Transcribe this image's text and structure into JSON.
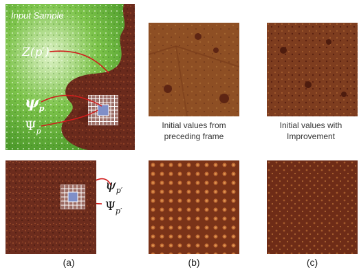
{
  "panel_a": {
    "title": "Input Sample",
    "label_z": "Z(p′)",
    "label_psi_p": "ψ",
    "label_Psi_p": "Ψ",
    "sub_p": "p",
    "label_psi_pprime": "ψ",
    "label_Psi_pprime": "Ψ",
    "sub_pprime": "p′",
    "caption": "(a)"
  },
  "panel_b": {
    "top_caption_line1": "Initial values from",
    "top_caption_line2": "preceding frame",
    "caption": "(b)"
  },
  "panel_c": {
    "top_caption_line1": "Initial values with",
    "top_caption_line2": "Improvement",
    "caption": "(c)"
  },
  "colors": {
    "green": "#5fae32",
    "rust": "#6a2a1c",
    "rust_light": "#8c3f24",
    "orange_tex": "#9a5a2a",
    "highlight_blue": "#7f8fc8",
    "arrow_red": "#d11c1c"
  }
}
